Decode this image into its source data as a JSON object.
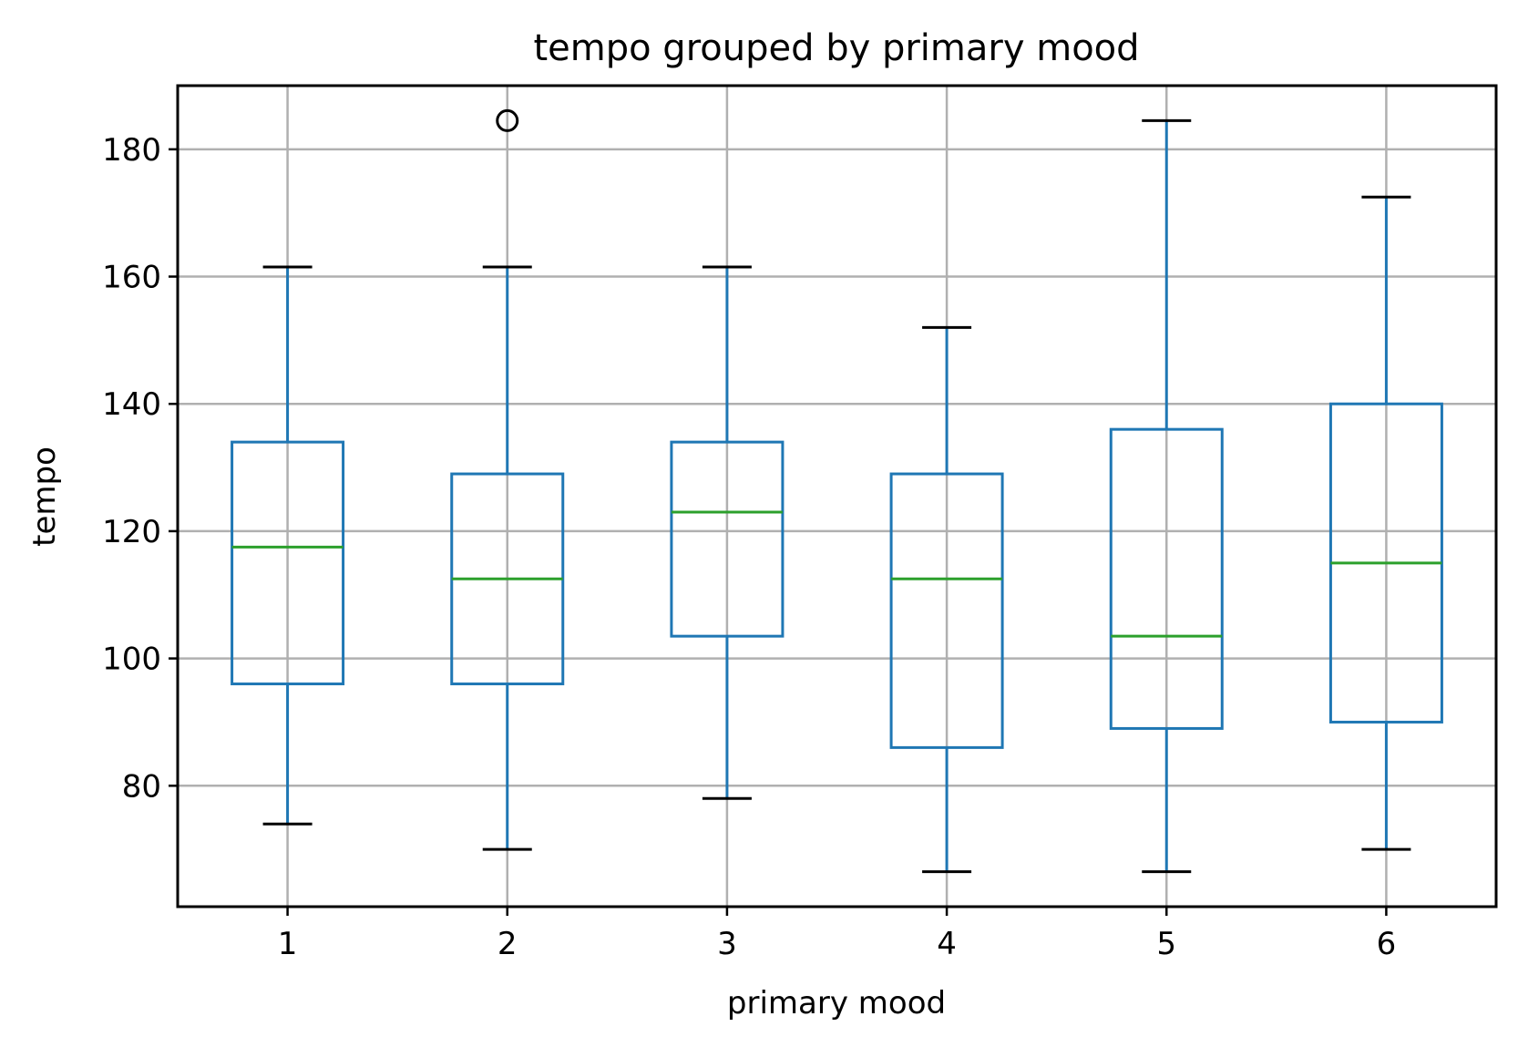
{
  "chart_data": {
    "type": "box",
    "title": "tempo grouped by primary mood",
    "xlabel": "primary mood",
    "ylabel": "tempo",
    "categories": [
      "1",
      "2",
      "3",
      "4",
      "5",
      "6"
    ],
    "boxes": [
      {
        "category": "1",
        "whisker_low": 74,
        "q1": 96,
        "median": 117.5,
        "q3": 134,
        "whisker_high": 161.5,
        "outliers": []
      },
      {
        "category": "2",
        "whisker_low": 70,
        "q1": 96,
        "median": 112.5,
        "q3": 129,
        "whisker_high": 161.5,
        "outliers": [
          184.5
        ]
      },
      {
        "category": "3",
        "whisker_low": 78,
        "q1": 103.5,
        "median": 123,
        "q3": 134,
        "whisker_high": 161.5,
        "outliers": []
      },
      {
        "category": "4",
        "whisker_low": 66.5,
        "q1": 86,
        "median": 112.5,
        "q3": 129,
        "whisker_high": 152,
        "outliers": []
      },
      {
        "category": "5",
        "whisker_low": 66.5,
        "q1": 89,
        "median": 103.5,
        "q3": 136,
        "whisker_high": 184.5,
        "outliers": []
      },
      {
        "category": "6",
        "whisker_low": 70,
        "q1": 90,
        "median": 115,
        "q3": 140,
        "whisker_high": 172.5,
        "outliers": []
      }
    ],
    "yticks": [
      80,
      100,
      120,
      140,
      160,
      180
    ],
    "ylim": [
      61,
      190
    ],
    "grid": true,
    "colors": {
      "box": "#1f77b4",
      "median": "#2ca02c",
      "whisker_cap": "#000000",
      "outlier": "#000000",
      "grid": "#b0b0b0",
      "axes": "#000000"
    }
  }
}
